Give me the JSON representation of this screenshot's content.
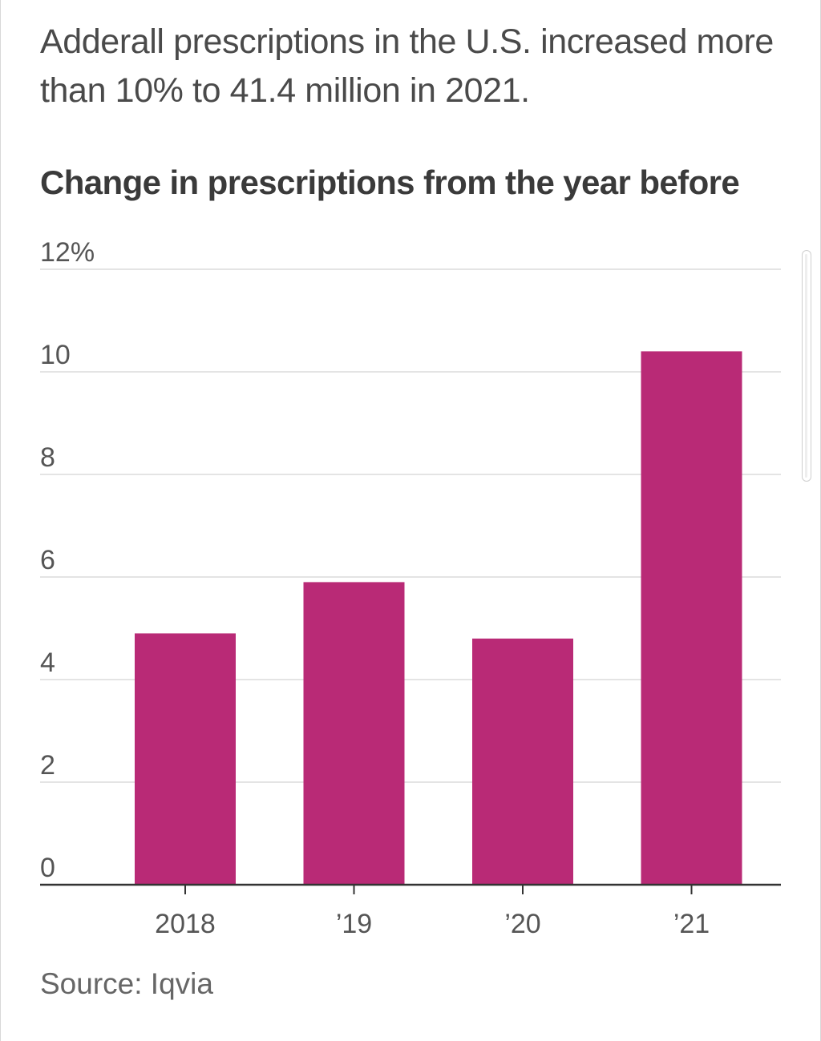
{
  "headline": "Adderall prescriptions in the U.S. increased more than 10% to 41.4 million in 2021.",
  "source": "Source: Iqvia",
  "colors": {
    "bar": "#b92a76",
    "grid": "#e4e4e4",
    "axis": "#333333",
    "text": "#4a4a4a"
  },
  "chart_data": {
    "type": "bar",
    "title": "Change in prescriptions from the year before",
    "xlabel": "",
    "ylabel": "",
    "categories": [
      "2018",
      "’19",
      "’20",
      "’21"
    ],
    "series": [
      {
        "name": "Change in prescriptions from the year before",
        "values": [
          4.9,
          5.9,
          4.8,
          10.4
        ]
      }
    ],
    "ylim": [
      0,
      12
    ],
    "yticks": [
      0,
      2,
      4,
      6,
      8,
      10,
      12
    ],
    "ytick_labels": [
      "0",
      "2",
      "4",
      "6",
      "8",
      "10",
      "12%"
    ],
    "grid": true,
    "legend": "none"
  }
}
